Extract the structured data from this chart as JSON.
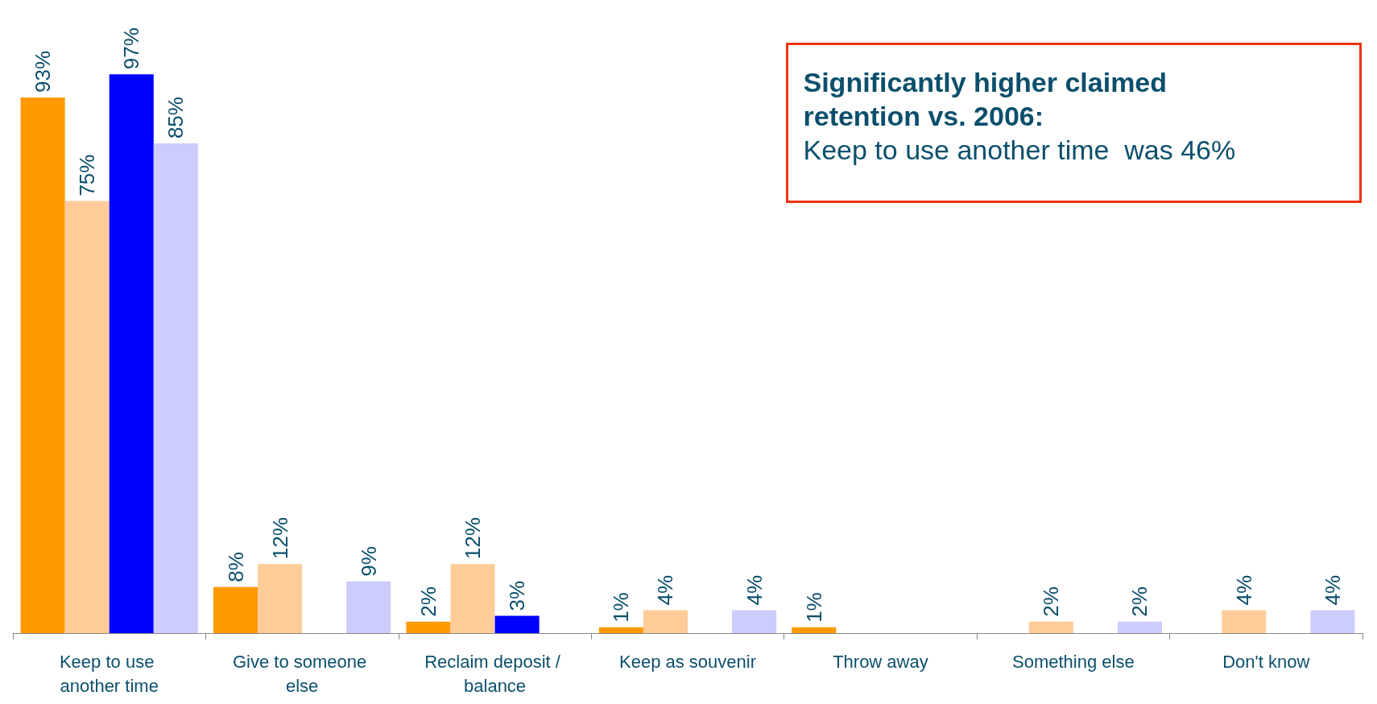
{
  "chart_data": {
    "type": "bar",
    "categories": [
      "Keep to use another time",
      "Give to someone else",
      "Reclaim deposit / balance",
      "Keep as souvenir",
      "Throw away",
      "Something else",
      "Don't know"
    ],
    "series": [
      {
        "color": "#ff9900",
        "values": [
          93,
          8,
          2,
          1,
          1,
          null,
          null
        ],
        "value_labels": [
          "93%",
          "8%",
          "2%",
          "1%",
          "1%",
          null,
          null
        ]
      },
      {
        "color": "#ffcc99",
        "values": [
          75,
          12,
          12,
          4,
          null,
          2,
          4
        ],
        "value_labels": [
          "75%",
          "12%",
          "12%",
          "4%",
          null,
          "2%",
          "4%"
        ]
      },
      {
        "color": "#0000ff",
        "values": [
          97,
          null,
          3,
          null,
          null,
          null,
          null
        ],
        "value_labels": [
          "97%",
          null,
          "3%",
          null,
          null,
          null,
          null
        ]
      },
      {
        "color": "#ccccff",
        "values": [
          85,
          9,
          null,
          4,
          null,
          2,
          4
        ],
        "value_labels": [
          "85%",
          "9%",
          null,
          "4%",
          null,
          "2%",
          "4%"
        ]
      }
    ],
    "annotations": [
      "Significantly higher claimed retention vs. 2006:",
      "Keep to use another time  was 46%"
    ]
  }
}
